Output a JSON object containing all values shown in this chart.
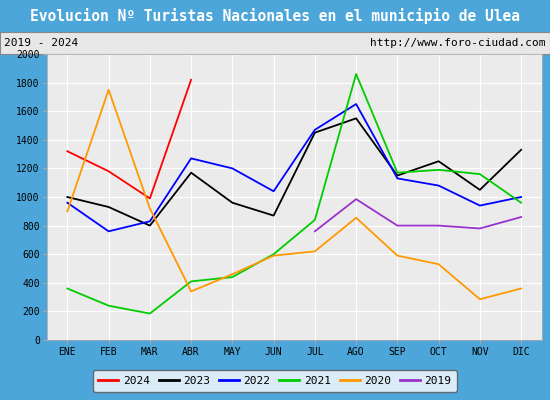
{
  "title": "Evolucion Nº Turistas Nacionales en el municipio de Ulea",
  "subtitle_left": "2019 - 2024",
  "subtitle_right": "http://www.foro-ciudad.com",
  "months": [
    "ENE",
    "FEB",
    "MAR",
    "ABR",
    "MAY",
    "JUN",
    "JUL",
    "AGO",
    "SEP",
    "OCT",
    "NOV",
    "DIC"
  ],
  "series": {
    "2024": {
      "color": "#ff0000",
      "data": [
        1320,
        1180,
        990,
        1820,
        null,
        null,
        null,
        null,
        null,
        null,
        null,
        null
      ]
    },
    "2023": {
      "color": "#000000",
      "data": [
        1000,
        930,
        800,
        1170,
        960,
        870,
        1450,
        1550,
        1150,
        1250,
        1050,
        1330
      ]
    },
    "2022": {
      "color": "#0000ff",
      "data": [
        960,
        760,
        830,
        1270,
        1200,
        1040,
        1470,
        1650,
        1130,
        1080,
        940,
        1000
      ]
    },
    "2021": {
      "color": "#00cc00",
      "data": [
        360,
        240,
        185,
        410,
        440,
        600,
        840,
        1860,
        1170,
        1190,
        1160,
        960
      ]
    },
    "2020": {
      "color": "#ff9900",
      "data": [
        900,
        1750,
        920,
        340,
        460,
        590,
        620,
        855,
        590,
        530,
        285,
        360
      ]
    },
    "2019": {
      "color": "#9933cc",
      "data": [
        null,
        null,
        null,
        null,
        null,
        null,
        760,
        985,
        800,
        800,
        780,
        860
      ]
    }
  },
  "ylim": [
    0,
    2000
  ],
  "yticks": [
    0,
    200,
    400,
    600,
    800,
    1000,
    1200,
    1400,
    1600,
    1800,
    2000
  ],
  "title_bg_color": "#4da6d9",
  "title_fg_color": "#ffffff",
  "subtitle_bg_color": "#e8e8e8",
  "plot_bg_color": "#ebebeb",
  "grid_color": "#ffffff",
  "legend_order": [
    "2024",
    "2023",
    "2022",
    "2021",
    "2020",
    "2019"
  ],
  "title_fontsize": 10.5,
  "tick_fontsize": 7,
  "legend_fontsize": 8
}
